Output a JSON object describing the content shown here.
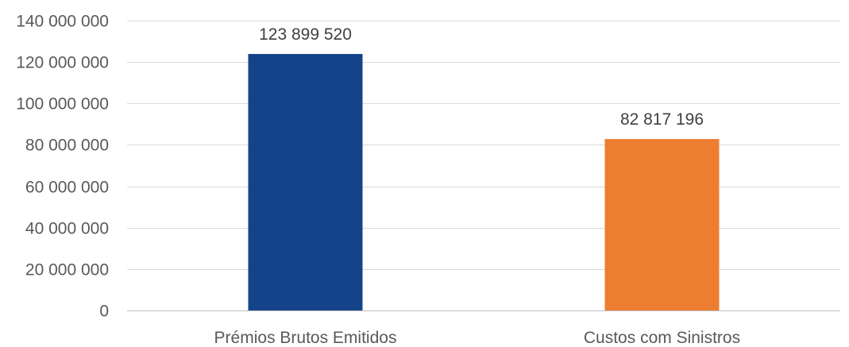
{
  "chart_data": {
    "type": "bar",
    "categories": [
      "Prémios Brutos Emitidos",
      "Custos com Sinistros"
    ],
    "values": [
      123899520,
      82817196
    ],
    "data_labels": [
      "123 899 520",
      "82 817 196"
    ],
    "colors": [
      "#15438a",
      "#ed7d31"
    ],
    "ylim": [
      0,
      140000000
    ],
    "y_ticks": [
      0,
      20000000,
      40000000,
      60000000,
      80000000,
      100000000,
      120000000,
      140000000
    ],
    "y_tick_labels": [
      "0",
      "20 000 000",
      "40 000 000",
      "60 000 000",
      "80 000 000",
      "100 000 000",
      "120 000 000",
      "140 000 000"
    ],
    "grid": true,
    "legend": "none"
  }
}
